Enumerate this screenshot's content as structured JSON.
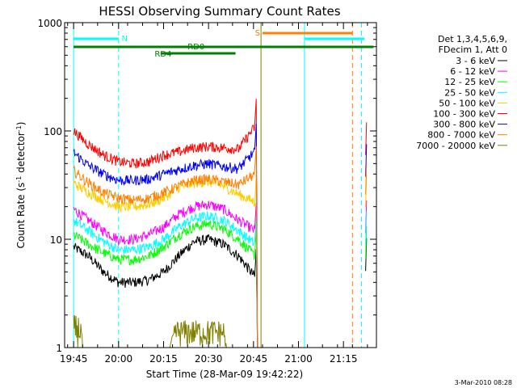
{
  "chart_data": {
    "type": "line",
    "title": "HESSI Observing Summary Count Rates",
    "xlabel": "Start Time (28-Mar-09 19:42:22)",
    "ylabel": "Count Rate (s⁻¹ detector⁻¹)",
    "ylabel_main": "Count Rate (s",
    "ylabel_sup1": "-1",
    "ylabel_mid": " detector",
    "ylabel_sup2": "-1",
    "ylabel_end": ")",
    "y_scale": "log",
    "xlim_minutes": [
      -3,
      101
    ],
    "ylim": [
      1,
      1000
    ],
    "x_ticks": [
      {
        "m": 0,
        "label": "19:45"
      },
      {
        "m": 15,
        "label": "20:00"
      },
      {
        "m": 30,
        "label": "20:15"
      },
      {
        "m": 45,
        "label": "20:30"
      },
      {
        "m": 60,
        "label": "20:45"
      },
      {
        "m": 75,
        "label": "21:00"
      },
      {
        "m": 90,
        "label": "21:15"
      }
    ],
    "y_ticks": [
      {
        "v": 1,
        "label": "1"
      },
      {
        "v": 10,
        "label": "10"
      },
      {
        "v": 100,
        "label": "100"
      },
      {
        "v": 1000,
        "label": "1000"
      }
    ],
    "legend": {
      "header": [
        "Det 1,3,4,5,6,9,",
        "FDecim 1, Att 0"
      ],
      "placement": "right"
    },
    "series": [
      {
        "name": "3 - 6 keV",
        "color": "#000000",
        "x": [
          0,
          5,
          10,
          15,
          20,
          25,
          30,
          35,
          40,
          45,
          50,
          55,
          60.5
        ],
        "y": [
          8.5,
          7.0,
          5.0,
          4.0,
          4.0,
          4.2,
          5.0,
          7.0,
          9.5,
          10.0,
          9.0,
          7.0,
          4.5
        ]
      },
      {
        "name": "6 - 12 keV",
        "color": "#ff00ff",
        "x": [
          0,
          5,
          10,
          15,
          20,
          25,
          30,
          35,
          40,
          45,
          50,
          55,
          60.5
        ],
        "y": [
          19,
          15,
          12,
          10,
          10,
          11,
          13,
          17,
          20,
          21,
          19,
          15,
          12
        ]
      },
      {
        "name": "12 - 25 keV",
        "color": "#00ff00",
        "x": [
          0,
          5,
          10,
          15,
          20,
          25,
          30,
          35,
          40,
          45,
          50,
          55,
          60.5
        ],
        "y": [
          11,
          9,
          7.5,
          6.5,
          6.5,
          7,
          8.5,
          11,
          13,
          14,
          12.5,
          10,
          7
        ]
      },
      {
        "name": "25 - 50 keV",
        "color": "#00ffff",
        "x": [
          0,
          5,
          10,
          15,
          20,
          25,
          30,
          35,
          40,
          45,
          50,
          55,
          60.5
        ],
        "y": [
          15,
          12,
          9.5,
          8,
          8,
          8.5,
          10,
          13,
          15.5,
          16.5,
          15,
          12,
          9
        ]
      },
      {
        "name": "50 - 100 keV",
        "color": "#ffcc00",
        "x": [
          0,
          5,
          10,
          15,
          20,
          25,
          30,
          35,
          40,
          45,
          50,
          55,
          60.5
        ],
        "y": [
          33,
          27,
          23,
          20,
          20,
          21,
          24,
          30,
          33,
          34,
          31,
          26,
          22
        ]
      },
      {
        "name": "100 - 300 keV",
        "color": "#ff0000",
        "x": [
          0,
          5,
          10,
          15,
          20,
          25,
          30,
          35,
          40,
          45,
          50,
          55,
          60.5
        ],
        "y": [
          100,
          75,
          60,
          52,
          50,
          52,
          60,
          64,
          70,
          72,
          70,
          68,
          110
        ]
      },
      {
        "name": "300 - 800 keV",
        "color": "#0000ff",
        "x": [
          0,
          5,
          10,
          15,
          20,
          25,
          30,
          35,
          40,
          45,
          50,
          55,
          60.5
        ],
        "y": [
          63,
          48,
          40,
          35,
          35,
          36,
          40,
          44,
          48,
          50,
          47,
          45,
          65
        ]
      },
      {
        "name": "800 - 7000 keV",
        "color": "#ff8000",
        "x": [
          0,
          5,
          10,
          15,
          20,
          25,
          30,
          35,
          40,
          45,
          50,
          55,
          60.5
        ],
        "y": [
          43,
          33,
          27,
          24,
          23,
          24,
          27,
          31,
          35,
          36,
          34,
          32,
          40
        ]
      },
      {
        "name": "7000 - 20000 keV",
        "color": "#808000",
        "x": [
          0,
          2.5,
          3,
          18,
          20,
          32,
          34,
          50,
          51,
          100
        ],
        "y": [
          2.0,
          2.0,
          1.0,
          1.0,
          1.0,
          1.0,
          1.8,
          1.8,
          1.0,
          1.0
        ]
      }
    ],
    "flags": {
      "N_label": "N",
      "S_label": "S",
      "RD0_label": "RD0",
      "RD4_label": "RD4"
    },
    "timestamp": "3-Mar-2010 08:28"
  }
}
